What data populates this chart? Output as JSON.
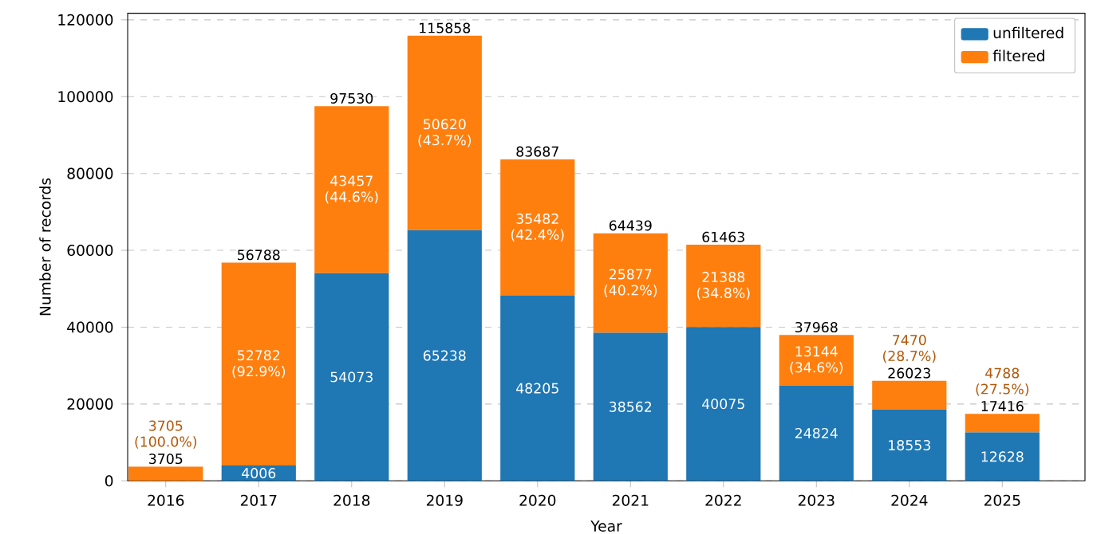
{
  "chart_data": {
    "type": "bar",
    "stacked": true,
    "xlabel": "Year",
    "ylabel": "Number of records",
    "categories": [
      "2016",
      "2017",
      "2018",
      "2019",
      "2020",
      "2021",
      "2022",
      "2023",
      "2024",
      "2025"
    ],
    "series": [
      {
        "name": "unfiltered",
        "color": "#1f77b4",
        "values": [
          0,
          4006,
          54073,
          65238,
          48205,
          38562,
          40075,
          24824,
          18553,
          12628
        ],
        "value_labels": [
          null,
          "4006",
          "54073",
          "65238",
          "48205",
          "38562",
          "40075",
          "24824",
          "18553",
          "12628"
        ]
      },
      {
        "name": "filtered",
        "color": "#ff7f0e",
        "values": [
          3705,
          52782,
          43457,
          50620,
          35482,
          25877,
          21388,
          13144,
          7470,
          4788
        ],
        "value_labels": [
          "3705 (100.0%)",
          "52782 (92.9%)",
          "43457 (44.6%)",
          "50620 (43.7%)",
          "35482 (42.4%)",
          "25877 (40.2%)",
          "21388 (34.8%)",
          "13144 (34.6%)",
          "7470 (28.7%)",
          "4788 (27.5%)"
        ]
      }
    ],
    "totals": [
      "3705",
      "56788",
      "97530",
      "115858",
      "83687",
      "64439",
      "61463",
      "37968",
      "26023",
      "17416"
    ],
    "ylim": [
      0,
      121700
    ],
    "yticks": [
      0,
      20000,
      40000,
      60000,
      80000,
      100000,
      120000
    ],
    "grid": "y",
    "legend": "top right"
  }
}
